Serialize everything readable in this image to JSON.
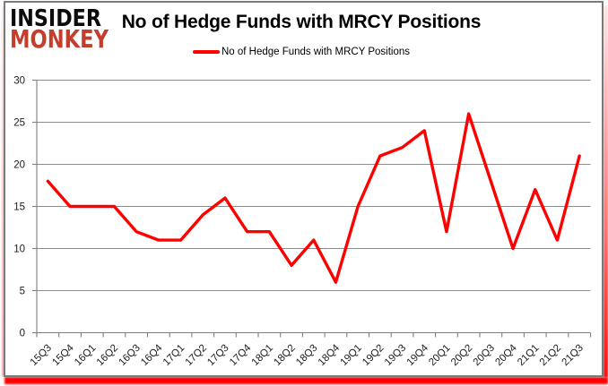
{
  "logo": {
    "line1": "INSIDER",
    "line2": "MONKEY"
  },
  "title": "No of Hedge Funds with MRCY Positions",
  "legend": {
    "label": "No of Hedge Funds with MRCY Positions"
  },
  "colors": {
    "series_line": "#ff0000",
    "gridline": "#8c8c8c",
    "axis": "#7f7f7f",
    "frame_border": "#7a7a7a",
    "page_shadow": "#ff0000",
    "logo_top": "#0c0c0c",
    "logo_bottom": "#c43e2c",
    "title_text": "#000000",
    "tick_text": "#1c1c1c"
  },
  "chart_data": {
    "type": "line",
    "title": "No of Hedge Funds with MRCY Positions",
    "categories": [
      "15Q3",
      "15Q4",
      "16Q1",
      "16Q2",
      "16Q3",
      "16Q4",
      "17Q1",
      "17Q2",
      "17Q3",
      "17Q4",
      "18Q1",
      "18Q2",
      "18Q3",
      "18Q4",
      "19Q1",
      "19Q2",
      "19Q3",
      "19Q4",
      "20Q1",
      "20Q2",
      "20Q3",
      "20Q4",
      "21Q1",
      "21Q2",
      "21Q3"
    ],
    "series": [
      {
        "name": "No of Hedge Funds with MRCY Positions",
        "values": [
          18,
          15,
          15,
          15,
          12,
          11,
          11,
          14,
          16,
          12,
          12,
          8,
          11,
          6,
          15,
          21,
          22,
          24,
          12,
          26,
          18,
          10,
          17,
          11,
          21
        ]
      }
    ],
    "xlabel": "",
    "ylabel": "",
    "ylim": [
      0,
      30
    ],
    "yticks": [
      0,
      5,
      10,
      15,
      20,
      25,
      30
    ],
    "grid": true,
    "legend_position": "top-center"
  }
}
